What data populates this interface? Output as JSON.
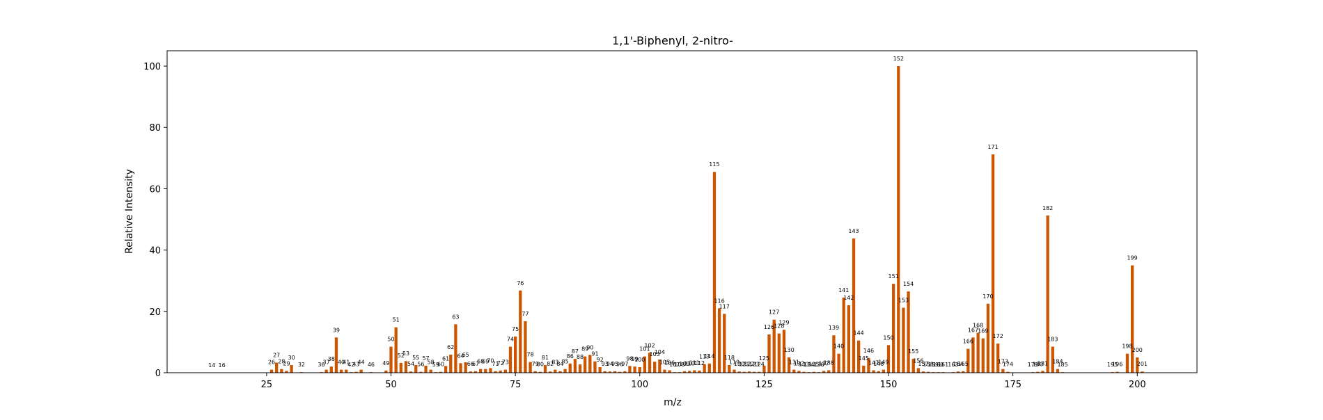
{
  "chart_data": {
    "type": "bar",
    "title": "1,1'-Biphenyl, 2-nitro-",
    "xlabel": "m/z",
    "ylabel": "Relative Intensity",
    "xlim": [
      5,
      212
    ],
    "ylim": [
      0,
      105
    ],
    "xticks": [
      25,
      50,
      75,
      100,
      125,
      150,
      175,
      200
    ],
    "yticks": [
      0,
      20,
      40,
      60,
      80,
      100
    ],
    "grid": false,
    "bar_color": "#CC5500",
    "points": [
      {
        "mz": 14,
        "intensity": 0.0
      },
      {
        "mz": 16,
        "intensity": 0.0
      },
      {
        "mz": 26,
        "intensity": 1.0
      },
      {
        "mz": 27,
        "intensity": 3.3
      },
      {
        "mz": 28,
        "intensity": 1.2
      },
      {
        "mz": 29,
        "intensity": 0.6
      },
      {
        "mz": 30,
        "intensity": 2.5
      },
      {
        "mz": 32,
        "intensity": 0.2
      },
      {
        "mz": 36,
        "intensity": 0.2
      },
      {
        "mz": 37,
        "intensity": 1.0
      },
      {
        "mz": 38,
        "intensity": 2.0
      },
      {
        "mz": 39,
        "intensity": 11.5
      },
      {
        "mz": 40,
        "intensity": 1.0
      },
      {
        "mz": 41,
        "intensity": 1.0
      },
      {
        "mz": 42,
        "intensity": 0.2
      },
      {
        "mz": 43,
        "intensity": 0.3
      },
      {
        "mz": 44,
        "intensity": 1.0
      },
      {
        "mz": 46,
        "intensity": 0.2
      },
      {
        "mz": 49,
        "intensity": 0.7
      },
      {
        "mz": 50,
        "intensity": 8.5
      },
      {
        "mz": 51,
        "intensity": 14.8
      },
      {
        "mz": 52,
        "intensity": 3.2
      },
      {
        "mz": 53,
        "intensity": 3.8
      },
      {
        "mz": 54,
        "intensity": 0.4
      },
      {
        "mz": 55,
        "intensity": 2.5
      },
      {
        "mz": 56,
        "intensity": 0.3
      },
      {
        "mz": 57,
        "intensity": 2.3
      },
      {
        "mz": 58,
        "intensity": 1.0
      },
      {
        "mz": 59,
        "intensity": 0.2
      },
      {
        "mz": 60,
        "intensity": 0.3
      },
      {
        "mz": 61,
        "intensity": 2.2
      },
      {
        "mz": 62,
        "intensity": 5.9
      },
      {
        "mz": 63,
        "intensity": 15.8
      },
      {
        "mz": 64,
        "intensity": 3.1
      },
      {
        "mz": 65,
        "intensity": 3.4
      },
      {
        "mz": 66,
        "intensity": 0.4
      },
      {
        "mz": 67,
        "intensity": 0.5
      },
      {
        "mz": 68,
        "intensity": 1.2
      },
      {
        "mz": 69,
        "intensity": 1.2
      },
      {
        "mz": 70,
        "intensity": 1.5
      },
      {
        "mz": 71,
        "intensity": 0.5
      },
      {
        "mz": 72,
        "intensity": 0.7
      },
      {
        "mz": 73,
        "intensity": 1.0
      },
      {
        "mz": 74,
        "intensity": 8.5
      },
      {
        "mz": 75,
        "intensity": 11.8
      },
      {
        "mz": 76,
        "intensity": 26.8
      },
      {
        "mz": 77,
        "intensity": 16.8
      },
      {
        "mz": 78,
        "intensity": 3.5
      },
      {
        "mz": 79,
        "intensity": 0.5
      },
      {
        "mz": 80,
        "intensity": 0.3
      },
      {
        "mz": 81,
        "intensity": 2.5
      },
      {
        "mz": 82,
        "intensity": 0.4
      },
      {
        "mz": 83,
        "intensity": 1.0
      },
      {
        "mz": 84,
        "intensity": 0.5
      },
      {
        "mz": 85,
        "intensity": 1.2
      },
      {
        "mz": 86,
        "intensity": 3.0
      },
      {
        "mz": 87,
        "intensity": 4.5
      },
      {
        "mz": 88,
        "intensity": 2.7
      },
      {
        "mz": 89,
        "intensity": 5.3
      },
      {
        "mz": 90,
        "intensity": 5.8
      },
      {
        "mz": 91,
        "intensity": 3.7
      },
      {
        "mz": 92,
        "intensity": 1.8
      },
      {
        "mz": 93,
        "intensity": 0.5
      },
      {
        "mz": 94,
        "intensity": 0.4
      },
      {
        "mz": 95,
        "intensity": 0.5
      },
      {
        "mz": 96,
        "intensity": 0.3
      },
      {
        "mz": 97,
        "intensity": 0.5
      },
      {
        "mz": 98,
        "intensity": 2.2
      },
      {
        "mz": 99,
        "intensity": 2.0
      },
      {
        "mz": 100,
        "intensity": 1.8
      },
      {
        "mz": 101,
        "intensity": 5.3
      },
      {
        "mz": 102,
        "intensity": 6.5
      },
      {
        "mz": 103,
        "intensity": 3.6
      },
      {
        "mz": 104,
        "intensity": 4.3
      },
      {
        "mz": 105,
        "intensity": 1.0
      },
      {
        "mz": 106,
        "intensity": 0.8
      },
      {
        "mz": 107,
        "intensity": 0.2
      },
      {
        "mz": 108,
        "intensity": 0.2
      },
      {
        "mz": 109,
        "intensity": 0.5
      },
      {
        "mz": 110,
        "intensity": 0.6
      },
      {
        "mz": 111,
        "intensity": 0.8
      },
      {
        "mz": 112,
        "intensity": 0.7
      },
      {
        "mz": 113,
        "intensity": 2.8
      },
      {
        "mz": 114,
        "intensity": 3.0
      },
      {
        "mz": 115,
        "intensity": 65.5
      },
      {
        "mz": 116,
        "intensity": 21.0
      },
      {
        "mz": 117,
        "intensity": 19.2
      },
      {
        "mz": 118,
        "intensity": 2.5
      },
      {
        "mz": 119,
        "intensity": 1.0
      },
      {
        "mz": 120,
        "intensity": 0.4
      },
      {
        "mz": 121,
        "intensity": 0.3
      },
      {
        "mz": 122,
        "intensity": 0.4
      },
      {
        "mz": 123,
        "intensity": 0.3
      },
      {
        "mz": 124,
        "intensity": 0.3
      },
      {
        "mz": 125,
        "intensity": 2.3
      },
      {
        "mz": 126,
        "intensity": 12.5
      },
      {
        "mz": 127,
        "intensity": 17.3
      },
      {
        "mz": 128,
        "intensity": 12.8
      },
      {
        "mz": 129,
        "intensity": 14.0
      },
      {
        "mz": 130,
        "intensity": 5.0
      },
      {
        "mz": 131,
        "intensity": 1.0
      },
      {
        "mz": 132,
        "intensity": 0.6
      },
      {
        "mz": 133,
        "intensity": 0.3
      },
      {
        "mz": 134,
        "intensity": 0.2
      },
      {
        "mz": 135,
        "intensity": 0.3
      },
      {
        "mz": 136,
        "intensity": 0.2
      },
      {
        "mz": 137,
        "intensity": 0.6
      },
      {
        "mz": 138,
        "intensity": 0.8
      },
      {
        "mz": 139,
        "intensity": 12.2
      },
      {
        "mz": 140,
        "intensity": 6.2
      },
      {
        "mz": 141,
        "intensity": 24.5
      },
      {
        "mz": 142,
        "intensity": 22.0
      },
      {
        "mz": 143,
        "intensity": 43.8
      },
      {
        "mz": 144,
        "intensity": 10.5
      },
      {
        "mz": 145,
        "intensity": 2.3
      },
      {
        "mz": 146,
        "intensity": 4.8
      },
      {
        "mz": 147,
        "intensity": 0.8
      },
      {
        "mz": 148,
        "intensity": 0.5
      },
      {
        "mz": 149,
        "intensity": 1.0
      },
      {
        "mz": 150,
        "intensity": 9.0
      },
      {
        "mz": 151,
        "intensity": 29.0
      },
      {
        "mz": 152,
        "intensity": 100.0
      },
      {
        "mz": 153,
        "intensity": 21.2
      },
      {
        "mz": 154,
        "intensity": 26.5
      },
      {
        "mz": 155,
        "intensity": 4.5
      },
      {
        "mz": 156,
        "intensity": 1.5
      },
      {
        "mz": 157,
        "intensity": 0.4
      },
      {
        "mz": 158,
        "intensity": 0.3
      },
      {
        "mz": 159,
        "intensity": 0.2
      },
      {
        "mz": 160,
        "intensity": 0.2
      },
      {
        "mz": 161,
        "intensity": 0.2
      },
      {
        "mz": 163,
        "intensity": 0.2
      },
      {
        "mz": 164,
        "intensity": 0.4
      },
      {
        "mz": 165,
        "intensity": 0.5
      },
      {
        "mz": 166,
        "intensity": 7.8
      },
      {
        "mz": 167,
        "intensity": 11.5
      },
      {
        "mz": 168,
        "intensity": 13.0
      },
      {
        "mz": 169,
        "intensity": 11.2
      },
      {
        "mz": 170,
        "intensity": 22.5
      },
      {
        "mz": 171,
        "intensity": 71.2
      },
      {
        "mz": 172,
        "intensity": 9.5
      },
      {
        "mz": 173,
        "intensity": 1.2
      },
      {
        "mz": 174,
        "intensity": 0.3
      },
      {
        "mz": 179,
        "intensity": 0.2
      },
      {
        "mz": 180,
        "intensity": 0.3
      },
      {
        "mz": 181,
        "intensity": 0.6
      },
      {
        "mz": 182,
        "intensity": 51.3
      },
      {
        "mz": 183,
        "intensity": 8.5
      },
      {
        "mz": 184,
        "intensity": 1.2
      },
      {
        "mz": 185,
        "intensity": 0.2
      },
      {
        "mz": 195,
        "intensity": 0.2
      },
      {
        "mz": 196,
        "intensity": 0.3
      },
      {
        "mz": 198,
        "intensity": 6.2
      },
      {
        "mz": 199,
        "intensity": 35.0
      },
      {
        "mz": 200,
        "intensity": 5.0
      },
      {
        "mz": 201,
        "intensity": 0.4
      }
    ]
  }
}
